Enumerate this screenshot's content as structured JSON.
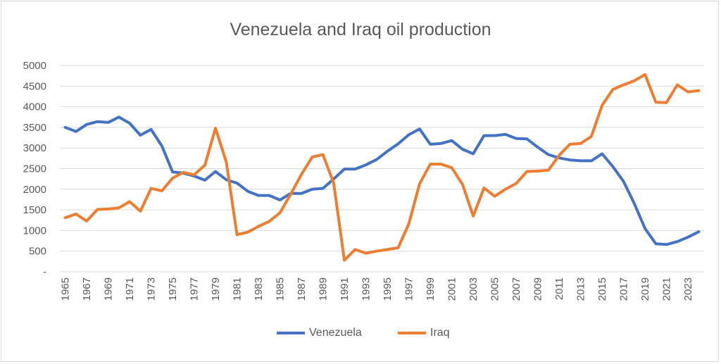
{
  "chart_data": {
    "type": "line",
    "title": "Venezuela and Iraq oil production",
    "xlabel": "",
    "ylabel": "",
    "ylim": [
      0,
      5000
    ],
    "yticks": [
      "-",
      "500",
      "1000",
      "1500",
      "2000",
      "2500",
      "3000",
      "3500",
      "4000",
      "4500",
      "5000"
    ],
    "x_start": 1965,
    "x_end": 2024,
    "xtick_step": 2,
    "grid": true,
    "legend_position": "bottom",
    "series": [
      {
        "name": "Venezuela",
        "color": "#4472c4",
        "values": [
          3500,
          3400,
          3570,
          3640,
          3620,
          3750,
          3600,
          3310,
          3450,
          3050,
          2420,
          2390,
          2320,
          2220,
          2430,
          2230,
          2150,
          1950,
          1850,
          1850,
          1740,
          1900,
          1900,
          2000,
          2020,
          2250,
          2490,
          2490,
          2590,
          2720,
          2920,
          3100,
          3320,
          3460,
          3090,
          3110,
          3180,
          2970,
          2860,
          3300,
          3300,
          3330,
          3230,
          3220,
          3020,
          2840,
          2760,
          2710,
          2690,
          2690,
          2860,
          2550,
          2190,
          1650,
          1050,
          680,
          660,
          730,
          840,
          970
        ]
      },
      {
        "name": "Iraq",
        "color": "#ed7d31",
        "values": [
          1310,
          1400,
          1230,
          1510,
          1520,
          1550,
          1700,
          1470,
          2020,
          1960,
          2270,
          2410,
          2350,
          2580,
          3480,
          2660,
          900,
          960,
          1100,
          1220,
          1430,
          1880,
          2360,
          2780,
          2840,
          2150,
          280,
          540,
          450,
          500,
          540,
          580,
          1160,
          2130,
          2610,
          2610,
          2520,
          2120,
          1350,
          2030,
          1830,
          2000,
          2140,
          2430,
          2440,
          2460,
          2820,
          3090,
          3110,
          3280,
          4030,
          4420,
          4530,
          4630,
          4780,
          4110,
          4100,
          4530,
          4360,
          4390
        ]
      }
    ]
  }
}
